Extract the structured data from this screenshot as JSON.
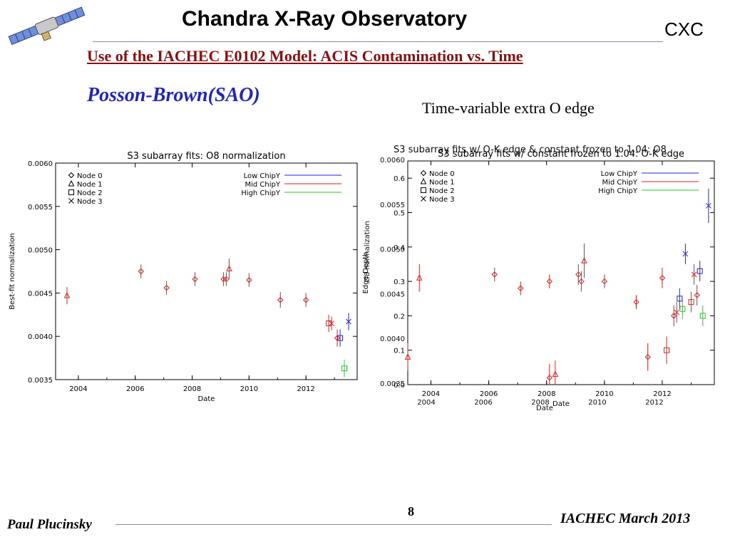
{
  "slide": {
    "title": "Chandra X-Ray Observatory",
    "org": "CXC",
    "subtitle": "Use of the IACHEC E0102 Model: ACIS Contamination vs. Time",
    "author_heading": "Posson-Brown(SAO)",
    "right_caption": "Time-variable extra O edge",
    "footer_left": "Paul Plucinsky",
    "footer_right": "IACHEC March 2013",
    "page_number": "8"
  },
  "colors": {
    "low": "#2222dd",
    "mid": "#dd2222",
    "high": "#22cc22",
    "subtitle": "#8a0f12",
    "author": "#1f24c9"
  },
  "icons": [
    "satellite-logo-icon"
  ],
  "chart_data": [
    {
      "type": "scatter",
      "title": "S3 subarray fits: O8 normalization",
      "xlabel": "Date",
      "ylabel": "Best-fit normalization",
      "xlim": [
        2003.2,
        2013.8
      ],
      "ylim": [
        0.0035,
        0.006
      ],
      "x_ticks": [
        2004,
        2006,
        2008,
        2010,
        2012
      ],
      "x_tick_labels": [
        "2004",
        "2006",
        "2008",
        "2010",
        "2012"
      ],
      "y_ticks": [
        0.0035,
        0.004,
        0.0045,
        0.005,
        0.0055,
        0.006
      ],
      "y_tick_labels": [
        "0.0035",
        "0.0040",
        "0.0045",
        "0.0050",
        "0.0055",
        "0.0060"
      ],
      "legend_markers": [
        "Node 0",
        "Node 1",
        "Node 2",
        "Node 3"
      ],
      "legend_series": [
        {
          "name": "Low ChipY",
          "color": "#2222dd"
        },
        {
          "name": "Mid ChipY",
          "color": "#dd2222"
        },
        {
          "name": "High ChipY",
          "color": "#22cc22"
        }
      ],
      "points": [
        {
          "x": 2003.6,
          "y": 0.00447,
          "err": 0.0001,
          "marker": "triangle",
          "chipy": "Mid ChipY"
        },
        {
          "x": 2006.2,
          "y": 0.00475,
          "err": 8e-05,
          "marker": "diamond",
          "chipy": "Mid ChipY"
        },
        {
          "x": 2007.1,
          "y": 0.00456,
          "err": 8e-05,
          "marker": "diamond",
          "chipy": "Mid ChipY"
        },
        {
          "x": 2008.1,
          "y": 0.00466,
          "err": 8e-05,
          "marker": "diamond",
          "chipy": "Mid ChipY"
        },
        {
          "x": 2009.1,
          "y": 0.00466,
          "err": 8e-05,
          "marker": "diamond",
          "chipy": "Mid ChipY"
        },
        {
          "x": 2009.2,
          "y": 0.00466,
          "err": 8e-05,
          "marker": "diamond",
          "chipy": "Mid ChipY"
        },
        {
          "x": 2009.3,
          "y": 0.00478,
          "err": 0.00012,
          "marker": "triangle",
          "chipy": "Mid ChipY"
        },
        {
          "x": 2010.0,
          "y": 0.00465,
          "err": 8e-05,
          "marker": "diamond",
          "chipy": "Mid ChipY"
        },
        {
          "x": 2011.1,
          "y": 0.00442,
          "err": 9e-05,
          "marker": "diamond",
          "chipy": "Mid ChipY"
        },
        {
          "x": 2012.0,
          "y": 0.00442,
          "err": 8e-05,
          "marker": "diamond",
          "chipy": "Mid ChipY"
        },
        {
          "x": 2012.8,
          "y": 0.00415,
          "err": 0.0001,
          "marker": "square",
          "chipy": "Mid ChipY"
        },
        {
          "x": 2012.9,
          "y": 0.00415,
          "err": 8e-05,
          "marker": "x",
          "chipy": "Mid ChipY"
        },
        {
          "x": 2013.1,
          "y": 0.00398,
          "err": 0.0001,
          "marker": "diamond",
          "chipy": "Mid ChipY"
        },
        {
          "x": 2013.2,
          "y": 0.00398,
          "err": 0.0001,
          "marker": "square",
          "chipy": "Low ChipY"
        },
        {
          "x": 2013.5,
          "y": 0.00417,
          "err": 0.0001,
          "marker": "x",
          "chipy": "Low ChipY"
        },
        {
          "x": 2013.35,
          "y": 0.00363,
          "err": 0.0001,
          "marker": "square",
          "chipy": "High ChipY"
        }
      ]
    },
    {
      "type": "scatter",
      "title": "S3 subarray fits w/ constant frozen to 1.04: O-K edge",
      "overlay_title": "S3 subarray fits w/ O-K edge & constant frozen to 1.04: O8",
      "xlabel": "Date",
      "ylabel": "Edge Depth",
      "overlay_ylabel": "O8 normalization",
      "xlim": [
        2003.2,
        2013.8
      ],
      "ylim": [
        0.0,
        0.65
      ],
      "x_ticks": [
        2004,
        2006,
        2008,
        2010,
        2012
      ],
      "x_tick_labels": [
        "2004",
        "2006",
        "2008",
        "2010",
        "2012"
      ],
      "y_ticks": [
        0.0,
        0.1,
        0.2,
        0.3,
        0.4,
        0.5,
        0.6
      ],
      "y_tick_labels": [
        "0.0",
        "0.1",
        "0.2",
        "0.3",
        "0.4",
        "0.5",
        "0.6"
      ],
      "overlay_y_tick_labels": [
        "0.0035",
        "0.0040",
        "0.0045",
        "0.0050",
        "0.0055",
        "0.0060"
      ],
      "overlay_x_tick_labels": [
        "2004",
        "2006",
        "2008",
        "2010",
        "2012"
      ],
      "legend_markers": [
        "Node 0",
        "Node 1",
        "Node 2",
        "Node 3"
      ],
      "legend_series": [
        {
          "name": "Low ChipY",
          "color": "#2222dd"
        },
        {
          "name": "Mid ChipY",
          "color": "#dd2222"
        },
        {
          "name": "High ChipY",
          "color": "#22cc22"
        }
      ],
      "points": [
        {
          "x": 2003.2,
          "y": 0.08,
          "err": 0.04,
          "marker": "triangle",
          "chipy": "Mid ChipY"
        },
        {
          "x": 2003.6,
          "y": 0.31,
          "err": 0.04,
          "marker": "triangle",
          "chipy": "Mid ChipY"
        },
        {
          "x": 2006.2,
          "y": 0.32,
          "err": 0.02,
          "marker": "diamond",
          "chipy": "Mid ChipY"
        },
        {
          "x": 2007.1,
          "y": 0.28,
          "err": 0.02,
          "marker": "diamond",
          "chipy": "Mid ChipY"
        },
        {
          "x": 2008.1,
          "y": 0.3,
          "err": 0.02,
          "marker": "diamond",
          "chipy": "Mid ChipY"
        },
        {
          "x": 2009.1,
          "y": 0.32,
          "err": 0.03,
          "marker": "diamond",
          "chipy": "Mid ChipY"
        },
        {
          "x": 2009.2,
          "y": 0.3,
          "err": 0.03,
          "marker": "diamond",
          "chipy": "Mid ChipY"
        },
        {
          "x": 2009.3,
          "y": 0.36,
          "err": 0.05,
          "marker": "triangle",
          "chipy": "Mid ChipY"
        },
        {
          "x": 2010.0,
          "y": 0.3,
          "err": 0.02,
          "marker": "diamond",
          "chipy": "Mid ChipY"
        },
        {
          "x": 2008.1,
          "y": 0.02,
          "err": 0.04,
          "marker": "diamond",
          "chipy": "Mid ChipY"
        },
        {
          "x": 2008.3,
          "y": 0.03,
          "err": 0.04,
          "marker": "triangle",
          "chipy": "Mid ChipY"
        },
        {
          "x": 2011.1,
          "y": 0.24,
          "err": 0.02,
          "marker": "diamond",
          "chipy": "Mid ChipY"
        },
        {
          "x": 2011.5,
          "y": 0.08,
          "err": 0.04,
          "marker": "diamond",
          "chipy": "Mid ChipY"
        },
        {
          "x": 2012.0,
          "y": 0.31,
          "err": 0.03,
          "marker": "diamond",
          "chipy": "Mid ChipY"
        },
        {
          "x": 2012.4,
          "y": 0.2,
          "err": 0.03,
          "marker": "diamond",
          "chipy": "Mid ChipY"
        },
        {
          "x": 2012.5,
          "y": 0.21,
          "err": 0.03,
          "marker": "x",
          "chipy": "Mid ChipY"
        },
        {
          "x": 2012.15,
          "y": 0.1,
          "err": 0.04,
          "marker": "square",
          "chipy": "Mid ChipY"
        },
        {
          "x": 2012.6,
          "y": 0.25,
          "err": 0.03,
          "marker": "square",
          "chipy": "Low ChipY"
        },
        {
          "x": 2012.7,
          "y": 0.22,
          "err": 0.03,
          "marker": "square",
          "chipy": "High ChipY"
        },
        {
          "x": 2013.0,
          "y": 0.24,
          "err": 0.03,
          "marker": "square",
          "chipy": "Mid ChipY"
        },
        {
          "x": 2013.2,
          "y": 0.26,
          "err": 0.03,
          "marker": "diamond",
          "chipy": "Mid ChipY"
        },
        {
          "x": 2013.1,
          "y": 0.32,
          "err": 0.03,
          "marker": "x",
          "chipy": "Mid ChipY"
        },
        {
          "x": 2013.3,
          "y": 0.33,
          "err": 0.03,
          "marker": "square",
          "chipy": "Low ChipY"
        },
        {
          "x": 2013.4,
          "y": 0.2,
          "err": 0.03,
          "marker": "square",
          "chipy": "High ChipY"
        },
        {
          "x": 2012.8,
          "y": 0.38,
          "err": 0.03,
          "marker": "x",
          "chipy": "Low ChipY"
        },
        {
          "x": 2013.6,
          "y": 0.52,
          "err": 0.05,
          "marker": "x",
          "chipy": "Low ChipY"
        }
      ]
    }
  ]
}
